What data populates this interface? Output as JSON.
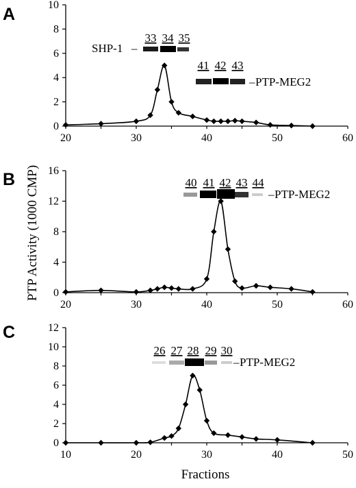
{
  "figure": {
    "ylabel": "PTP Activity (1000 CMP)",
    "xlabel": "Fractions"
  },
  "chart_data": [
    {
      "type": "line",
      "panel": "A",
      "xlim": [
        20,
        60
      ],
      "ylim": [
        0,
        10
      ],
      "xticks": [
        20,
        30,
        40,
        50,
        60
      ],
      "yticks": [
        0,
        2,
        4,
        6,
        8,
        10
      ],
      "x": [
        20,
        25,
        30,
        32,
        33,
        34,
        35,
        36,
        38,
        40,
        41,
        42,
        43,
        44,
        45,
        47,
        49,
        52,
        55
      ],
      "y": [
        0.1,
        0.2,
        0.4,
        0.9,
        3.0,
        5.0,
        2.0,
        1.1,
        0.8,
        0.5,
        0.4,
        0.4,
        0.4,
        0.45,
        0.4,
        0.3,
        0.1,
        0.05,
        0.0
      ],
      "marker": "diamond",
      "blots": [
        {
          "label": "SHP-1",
          "fractions": [
            "33",
            "34",
            "35"
          ]
        },
        {
          "label": "PTP-MEG2",
          "fractions": [
            "41",
            "42",
            "43"
          ]
        }
      ]
    },
    {
      "type": "line",
      "panel": "B",
      "xlim": [
        20,
        60
      ],
      "ylim": [
        0,
        16
      ],
      "xticks": [
        20,
        30,
        40,
        50,
        60
      ],
      "yticks": [
        0,
        4,
        8,
        12,
        16
      ],
      "x": [
        20,
        25,
        30,
        32,
        33,
        34,
        35,
        36,
        38,
        40,
        41,
        42,
        43,
        44,
        45,
        47,
        49,
        52,
        55
      ],
      "y": [
        0.1,
        0.3,
        0.1,
        0.3,
        0.5,
        0.7,
        0.6,
        0.5,
        0.5,
        1.8,
        8.0,
        12.0,
        5.7,
        1.5,
        0.6,
        0.9,
        0.7,
        0.5,
        0.1
      ],
      "marker": "diamond",
      "blots": [
        {
          "label": "PTP-MEG2",
          "fractions": [
            "40",
            "41",
            "42",
            "43",
            "44"
          ]
        }
      ]
    },
    {
      "type": "line",
      "panel": "C",
      "xlim": [
        10,
        50
      ],
      "ylim": [
        0,
        12
      ],
      "xticks": [
        10,
        20,
        30,
        40,
        50
      ],
      "yticks": [
        0,
        2,
        4,
        6,
        8,
        10,
        12
      ],
      "x": [
        10,
        15,
        20,
        22,
        24,
        25,
        26,
        27,
        28,
        29,
        30,
        31,
        33,
        35,
        37,
        40,
        45
      ],
      "y": [
        0.0,
        0.0,
        0.0,
        0.05,
        0.5,
        0.7,
        1.5,
        4.0,
        7.0,
        5.5,
        2.3,
        1.0,
        0.8,
        0.6,
        0.4,
        0.3,
        0.0
      ],
      "marker": "diamond",
      "blots": [
        {
          "label": "PTP-MEG2",
          "fractions": [
            "26",
            "27",
            "28",
            "29",
            "30"
          ]
        }
      ]
    }
  ]
}
